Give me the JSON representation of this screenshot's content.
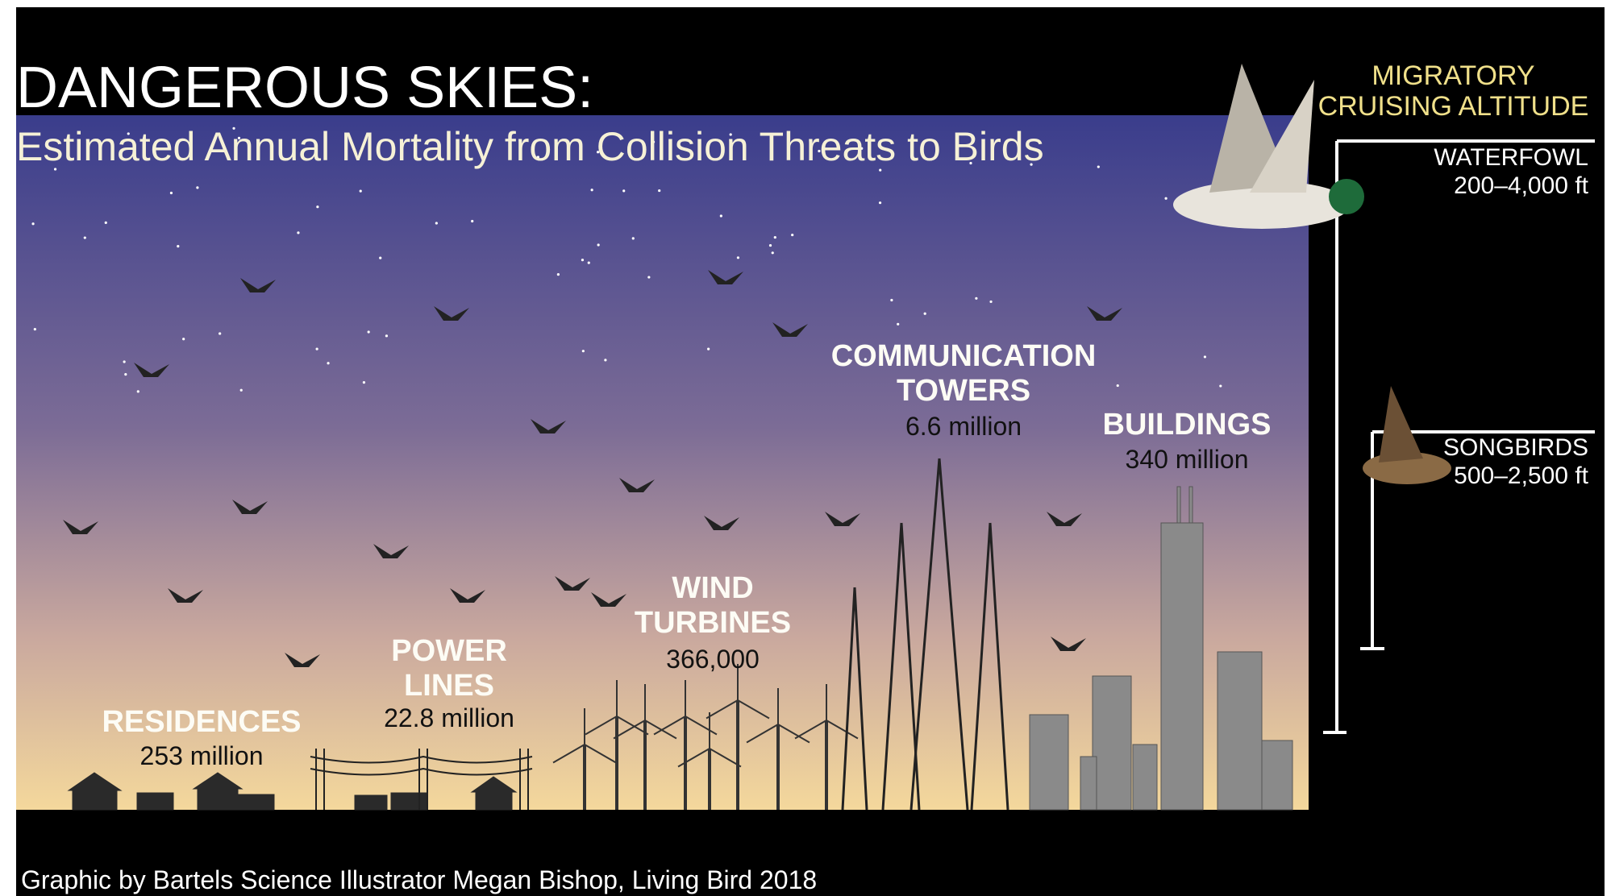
{
  "header": {
    "title": "DANGEROUS SKIES:",
    "subtitle": "Estimated Annual Mortality from Collision Threats to Birds"
  },
  "threats": [
    {
      "label": "RESIDENCES",
      "value": "253 million"
    },
    {
      "label": "POWER LINES",
      "value": "22.8 million"
    },
    {
      "label": "WIND TURBINES",
      "value": "366,000"
    },
    {
      "label": "COMMUNICATION TOWERS",
      "value": "6.6 million"
    },
    {
      "label": "BUILDINGS",
      "value": "340 million"
    }
  ],
  "altitude": {
    "heading": "MIGRATORY CRUISING ALTITUDE",
    "groups": [
      {
        "name": "WATERFOWL",
        "range": "200–4,000 ft"
      },
      {
        "name": "SONGBIRDS",
        "range": "500–2,500 ft"
      }
    ]
  },
  "credit": "Graphic by Bartels Science Illustrator Megan Bishop, Living Bird 2018"
}
